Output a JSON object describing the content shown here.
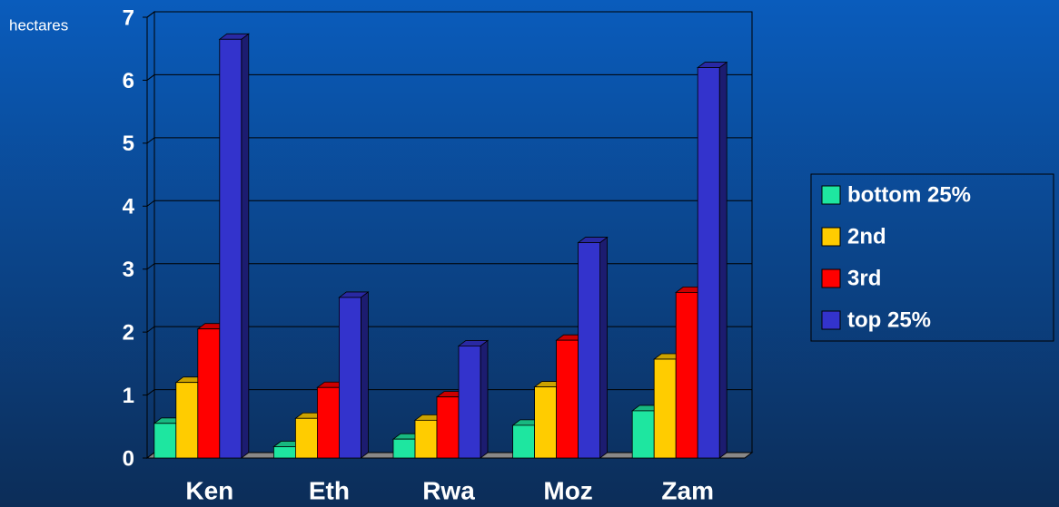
{
  "chart_data": {
    "type": "bar",
    "y_label": "hectares",
    "categories": [
      "Ken",
      "Eth",
      "Rwa",
      "Moz",
      "Zam"
    ],
    "series": [
      {
        "name": "bottom 25%",
        "color": "#1ee6a0",
        "values": [
          0.55,
          0.18,
          0.3,
          0.52,
          0.75
        ]
      },
      {
        "name": "2nd",
        "color": "#ffcc00",
        "values": [
          1.2,
          0.63,
          0.6,
          1.13,
          1.57
        ]
      },
      {
        "name": "3rd",
        "color": "#ff0000",
        "values": [
          2.05,
          1.12,
          0.97,
          1.87,
          2.63
        ]
      },
      {
        "name": "top 25%",
        "color": "#3333cc",
        "values": [
          6.65,
          2.55,
          1.78,
          3.42,
          6.2
        ]
      }
    ],
    "ylim": [
      0,
      7
    ],
    "yticks": [
      0,
      1,
      2,
      3,
      4,
      5,
      6,
      7
    ],
    "grid": true,
    "legend": "right"
  }
}
